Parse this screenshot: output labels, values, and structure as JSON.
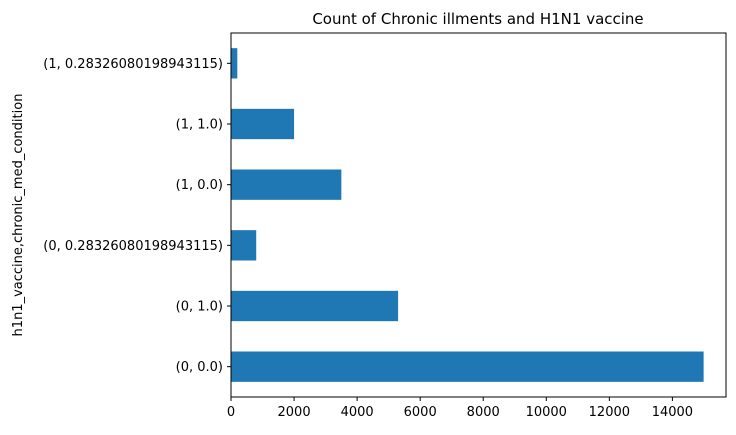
{
  "chart_data": {
    "type": "bar",
    "orientation": "horizontal",
    "title": "Count of Chronic illments and H1N1 vaccine",
    "xlabel": "",
    "ylabel": "h1n1_vaccine,chronic_med_condition",
    "categories": [
      "(0, 0.0)",
      "(0, 1.0)",
      "(0, 0.28326080198943115)",
      "(1, 0.0)",
      "(1, 1.0)",
      "(1, 0.28326080198943115)"
    ],
    "values": [
      14990,
      5300,
      800,
      3500,
      2000,
      200
    ],
    "xlim": [
      0,
      15700
    ],
    "xticks": [
      0,
      2000,
      4000,
      6000,
      8000,
      10000,
      12000,
      14000
    ],
    "xtick_labels": [
      "0",
      "2000",
      "4000",
      "6000",
      "8000",
      "10000",
      "12000",
      "14000"
    ],
    "bar_color": "#1f77b4",
    "grid": false,
    "legend": "none"
  }
}
